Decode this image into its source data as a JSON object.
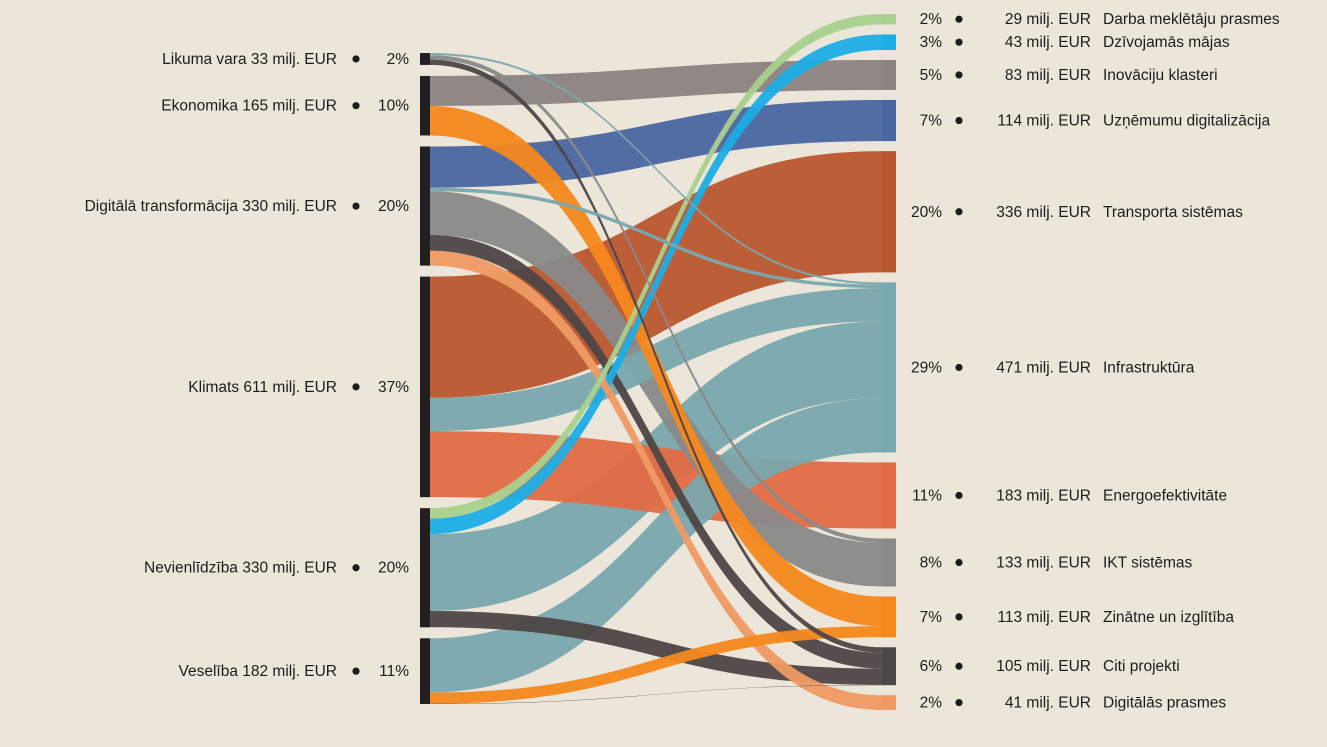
{
  "chart_data": {
    "type": "sankey",
    "sources": [
      {
        "id": "likuma",
        "label": "Likuma vara",
        "amount": "33 milj. EUR",
        "pct": "2%",
        "value": 33
      },
      {
        "id": "ekonomika",
        "label": "Ekonomika",
        "amount": "165 milj. EUR",
        "pct": "10%",
        "value": 165
      },
      {
        "id": "digitala",
        "label": "Digitālā transformācija",
        "amount": "330 milj. EUR",
        "pct": "20%",
        "value": 330
      },
      {
        "id": "klimats",
        "label": "Klimats",
        "amount": "611 milj. EUR",
        "pct": "37%",
        "value": 611
      },
      {
        "id": "nevienlidziba",
        "label": "Nevienlīdzība",
        "amount": "330 milj. EUR",
        "pct": "20%",
        "value": 330
      },
      {
        "id": "veseliba",
        "label": "Veselība",
        "amount": "182 milj. EUR",
        "pct": "11%",
        "value": 182
      }
    ],
    "targets": [
      {
        "id": "darba",
        "label": "Darba meklētāju prasmes",
        "amount": "29 milj. EUR",
        "pct": "2%",
        "value": 29,
        "color": "#A9D18E"
      },
      {
        "id": "majas",
        "label": "Dzīvojamās mājas",
        "amount": "43 milj. EUR",
        "pct": "3%",
        "value": 43,
        "color": "#1CADE4"
      },
      {
        "id": "inovaciju",
        "label": "Inovāciju klasteri",
        "amount": "83 milj. EUR",
        "pct": "5%",
        "value": 83,
        "color": "#8C8381"
      },
      {
        "id": "uznemumu",
        "label": "Uzņēmumu digitalizācija",
        "amount": "114 milj. EUR",
        "pct": "7%",
        "value": 114,
        "color": "#4A66A0"
      },
      {
        "id": "transporta",
        "label": "Transporta sistēmas",
        "amount": "336 milj. EUR",
        "pct": "20%",
        "value": 336,
        "color": "#B95730"
      },
      {
        "id": "infra",
        "label": "Infrastruktūra",
        "amount": "471 milj. EUR",
        "pct": "29%",
        "value": 471,
        "color": "#79A8AE"
      },
      {
        "id": "energo",
        "label": "Energoefektivitāte",
        "amount": "183 milj. EUR",
        "pct": "11%",
        "value": 183,
        "color": "#E16B44"
      },
      {
        "id": "ikt",
        "label": "IKT sistēmas",
        "amount": "133 milj. EUR",
        "pct": "8%",
        "value": 133,
        "color": "#898989"
      },
      {
        "id": "zinatne",
        "label": "Zinātne un izglītība",
        "amount": "113 milj. EUR",
        "pct": "7%",
        "value": 113,
        "color": "#F6881E"
      },
      {
        "id": "citi",
        "label": "Citi projekti",
        "amount": "105 milj. EUR",
        "pct": "6%",
        "value": 105,
        "color": "#4D4646"
      },
      {
        "id": "digprasmes",
        "label": "Digitālās prasmes",
        "amount": "41 milj. EUR",
        "pct": "2%",
        "value": 41,
        "color": "#EF9A63"
      }
    ],
    "flows": [
      {
        "from": "likuma",
        "to": "infra",
        "value": 6
      },
      {
        "from": "likuma",
        "to": "citi",
        "value": 15
      },
      {
        "from": "likuma",
        "to": "ikt",
        "value": 12
      },
      {
        "from": "ekonomika",
        "to": "inovaciju",
        "value": 83
      },
      {
        "from": "ekonomika",
        "to": "zinatne",
        "value": 82
      },
      {
        "from": "digitala",
        "to": "uznemumu",
        "value": 114
      },
      {
        "from": "digitala",
        "to": "infra",
        "value": 10
      },
      {
        "from": "digitala",
        "to": "ikt",
        "value": 121
      },
      {
        "from": "digitala",
        "to": "citi",
        "value": 44
      },
      {
        "from": "digitala",
        "to": "digprasmes",
        "value": 41
      },
      {
        "from": "klimats",
        "to": "transporta",
        "value": 336
      },
      {
        "from": "klimats",
        "to": "infra",
        "value": 92
      },
      {
        "from": "klimats",
        "to": "energo",
        "value": 183
      },
      {
        "from": "nevienlidziba",
        "to": "darba",
        "value": 29
      },
      {
        "from": "nevienlidziba",
        "to": "majas",
        "value": 43
      },
      {
        "from": "nevienlidziba",
        "to": "infra",
        "value": 213
      },
      {
        "from": "nevienlidziba",
        "to": "citi",
        "value": 45
      },
      {
        "from": "veseliba",
        "to": "zinatne",
        "value": 31
      },
      {
        "from": "veseliba",
        "to": "infra",
        "value": 150
      },
      {
        "from": "veseliba",
        "to": "citi",
        "value": 1
      }
    ]
  }
}
